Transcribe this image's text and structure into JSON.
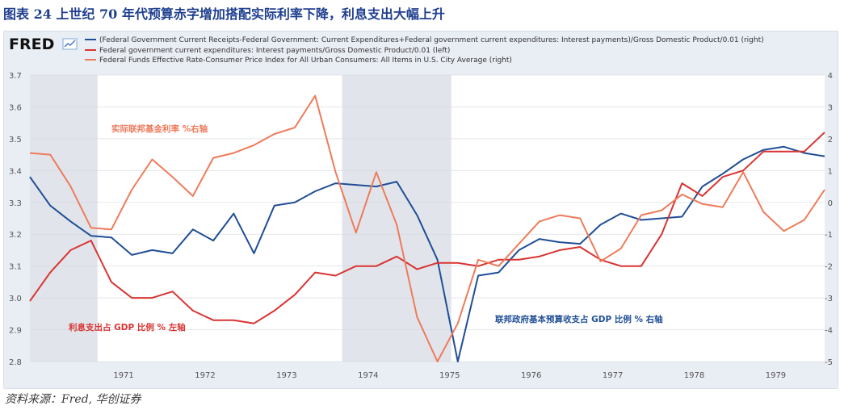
{
  "figure": {
    "title": "图表 24 上世纪 70 年代预算赤字增加搭配实际利率下降，利息支出大幅上升",
    "source": "资料来源：Fred, 华创证券"
  },
  "brand": {
    "logo": "FRED",
    "logo_icon": "fred-sparkline-icon"
  },
  "colors": {
    "blue": "#1f4e96",
    "red": "#d93432",
    "orange": "#ee7b5b",
    "recession": "#e1e5eb",
    "title": "#1f3f8f"
  },
  "chart_data": {
    "type": "line",
    "x_ticks": [
      "1971",
      "1972",
      "1973",
      "1974",
      "1975",
      "1976",
      "1977",
      "1978",
      "1979"
    ],
    "xlim": [
      1970.0,
      1979.75
    ],
    "y_left": {
      "ticks": [
        "3.7",
        "3.6",
        "3.5",
        "3.4",
        "3.3",
        "3.2",
        "3.1",
        "3.0",
        "2.9",
        "2.8"
      ],
      "range": [
        2.8,
        3.7
      ]
    },
    "y_right": {
      "ticks": [
        "4",
        "3",
        "2",
        "1",
        "0",
        "-1",
        "-2",
        "-3",
        "-4",
        "-5"
      ],
      "range": [
        -5,
        4
      ]
    },
    "recessions": [
      {
        "start": 1970.0,
        "end": 1970.83
      },
      {
        "start": 1973.83,
        "end": 1975.17
      }
    ],
    "series": [
      {
        "name": "(Federal Government Current Receipts-Federal Government: Current Expenditures+Federal government current expenditures: Interest payments)/Gross Domestic Product/0.01 (right)",
        "axis": "right",
        "color_key": "blue",
        "points": [
          [
            1970.0,
            0.8
          ],
          [
            1970.25,
            -0.1
          ],
          [
            1970.5,
            -0.6
          ],
          [
            1970.75,
            -1.05
          ],
          [
            1971.0,
            -1.1
          ],
          [
            1971.25,
            -1.65
          ],
          [
            1971.5,
            -1.5
          ],
          [
            1971.75,
            -1.6
          ],
          [
            1972.0,
            -0.85
          ],
          [
            1972.25,
            -1.2
          ],
          [
            1972.5,
            -0.35
          ],
          [
            1972.75,
            -1.6
          ],
          [
            1973.0,
            -0.1
          ],
          [
            1973.25,
            0.0
          ],
          [
            1973.5,
            0.35
          ],
          [
            1973.75,
            0.6
          ],
          [
            1974.0,
            0.55
          ],
          [
            1974.25,
            0.5
          ],
          [
            1974.5,
            0.65
          ],
          [
            1974.75,
            -0.4
          ],
          [
            1975.0,
            -1.8
          ],
          [
            1975.25,
            -5.0
          ],
          [
            1975.5,
            -2.3
          ],
          [
            1975.75,
            -2.2
          ],
          [
            1976.0,
            -1.5
          ],
          [
            1976.25,
            -1.15
          ],
          [
            1976.5,
            -1.25
          ],
          [
            1976.75,
            -1.3
          ],
          [
            1977.0,
            -0.7
          ],
          [
            1977.25,
            -0.35
          ],
          [
            1977.5,
            -0.55
          ],
          [
            1977.75,
            -0.5
          ],
          [
            1978.0,
            -0.45
          ],
          [
            1978.25,
            0.5
          ],
          [
            1978.5,
            0.9
          ],
          [
            1978.75,
            1.35
          ],
          [
            1979.0,
            1.65
          ],
          [
            1979.25,
            1.75
          ],
          [
            1979.5,
            1.55
          ],
          [
            1979.75,
            1.45
          ]
        ]
      },
      {
        "name": "Federal government current expenditures: Interest payments/Gross Domestic Product/0.01 (left)",
        "axis": "left",
        "color_key": "red",
        "points": [
          [
            1970.0,
            2.99
          ],
          [
            1970.25,
            3.08
          ],
          [
            1970.5,
            3.15
          ],
          [
            1970.75,
            3.18
          ],
          [
            1971.0,
            3.05
          ],
          [
            1971.25,
            3.0
          ],
          [
            1971.5,
            3.0
          ],
          [
            1971.75,
            3.02
          ],
          [
            1972.0,
            2.96
          ],
          [
            1972.25,
            2.93
          ],
          [
            1972.5,
            2.93
          ],
          [
            1972.75,
            2.92
          ],
          [
            1973.0,
            2.96
          ],
          [
            1973.25,
            3.01
          ],
          [
            1973.5,
            3.08
          ],
          [
            1973.75,
            3.07
          ],
          [
            1974.0,
            3.1
          ],
          [
            1974.25,
            3.1
          ],
          [
            1974.5,
            3.13
          ],
          [
            1974.75,
            3.09
          ],
          [
            1975.0,
            3.11
          ],
          [
            1975.25,
            3.11
          ],
          [
            1975.5,
            3.1
          ],
          [
            1975.75,
            3.12
          ],
          [
            1976.0,
            3.12
          ],
          [
            1976.25,
            3.13
          ],
          [
            1976.5,
            3.15
          ],
          [
            1976.75,
            3.16
          ],
          [
            1977.0,
            3.12
          ],
          [
            1977.25,
            3.1
          ],
          [
            1977.5,
            3.1
          ],
          [
            1977.75,
            3.2
          ],
          [
            1978.0,
            3.36
          ],
          [
            1978.25,
            3.32
          ],
          [
            1978.5,
            3.38
          ],
          [
            1978.75,
            3.4
          ],
          [
            1979.0,
            3.46
          ],
          [
            1979.25,
            3.46
          ],
          [
            1979.5,
            3.46
          ],
          [
            1979.75,
            3.52
          ]
        ]
      },
      {
        "name": "Federal Funds Effective Rate-Consumer Price Index for All Urban Consumers: All Items in U.S. City Average (right)",
        "axis": "right",
        "color_key": "orange",
        "points": [
          [
            1970.0,
            1.55
          ],
          [
            1970.25,
            1.5
          ],
          [
            1970.5,
            0.5
          ],
          [
            1970.75,
            -0.8
          ],
          [
            1971.0,
            -0.85
          ],
          [
            1971.25,
            0.4
          ],
          [
            1971.5,
            1.35
          ],
          [
            1971.75,
            0.8
          ],
          [
            1972.0,
            0.2
          ],
          [
            1972.25,
            1.4
          ],
          [
            1972.5,
            1.55
          ],
          [
            1972.75,
            1.8
          ],
          [
            1973.0,
            2.15
          ],
          [
            1973.25,
            2.35
          ],
          [
            1973.5,
            3.35
          ],
          [
            1973.75,
            0.95
          ],
          [
            1974.0,
            -0.95
          ],
          [
            1974.25,
            0.95
          ],
          [
            1974.5,
            -0.7
          ],
          [
            1974.75,
            -3.6
          ],
          [
            1975.0,
            -5.0
          ],
          [
            1975.25,
            -3.8
          ],
          [
            1975.5,
            -1.8
          ],
          [
            1975.75,
            -2.0
          ],
          [
            1976.0,
            -1.3
          ],
          [
            1976.25,
            -0.6
          ],
          [
            1976.5,
            -0.4
          ],
          [
            1976.75,
            -0.5
          ],
          [
            1977.0,
            -1.85
          ],
          [
            1977.25,
            -1.45
          ],
          [
            1977.5,
            -0.4
          ],
          [
            1977.75,
            -0.25
          ],
          [
            1978.0,
            0.25
          ],
          [
            1978.25,
            -0.05
          ],
          [
            1978.5,
            -0.15
          ],
          [
            1978.75,
            0.95
          ],
          [
            1979.0,
            -0.3
          ],
          [
            1979.25,
            -0.9
          ],
          [
            1979.5,
            -0.55
          ],
          [
            1979.75,
            0.4
          ]
        ]
      }
    ],
    "annotations": [
      {
        "text": "实际联邦基金利率 %右轴",
        "color_key": "orange"
      },
      {
        "text": "利息支出占 GDP 比例 % 左轴",
        "color_key": "red"
      },
      {
        "text": "联邦政府基本预算收支占 GDP 比例 % 右轴",
        "color_key": "blue"
      }
    ]
  }
}
